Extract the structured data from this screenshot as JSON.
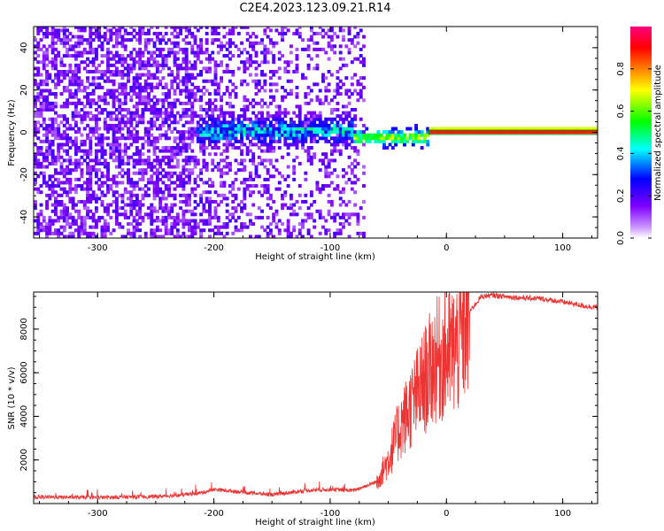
{
  "title": "C2E4.2023.123.09.21.R14",
  "chart_data": [
    {
      "type": "heatmap",
      "title": "C2E4.2023.123.09.21.R14",
      "xlabel": "Height of straight line (km)",
      "ylabel": "Frequency (Hz)",
      "xlim": [
        -355,
        130
      ],
      "ylim": [
        -50,
        50
      ],
      "xticks": [
        -300,
        -200,
        -100,
        0,
        100
      ],
      "yticks": [
        -40,
        -20,
        0,
        20,
        40
      ],
      "xtick_labels": [
        "-300",
        "-200",
        "-100",
        "0",
        "100"
      ],
      "ytick_labels": [
        "-40",
        "-20",
        "0",
        "20",
        "40"
      ],
      "colorbar": {
        "label": "Normalized spectral amplitude",
        "range": [
          0,
          1
        ],
        "ticks": [
          0.0,
          0.2,
          0.4,
          0.6,
          0.8
        ],
        "tick_labels": [
          "0.0",
          "0.2",
          "0.4",
          "0.6",
          "0.8"
        ],
        "colors": [
          "#ffffff",
          "#cc99ff",
          "#7f00ff",
          "#0000ff",
          "#00ffff",
          "#00ff00",
          "#ffff00",
          "#ff8000",
          "#ff0000",
          "#ff0080"
        ]
      },
      "description_regions": [
        {
          "x_range": [
            -355,
            -70
          ],
          "freq_range": [
            -50,
            50
          ],
          "amplitude": 0.1
        },
        {
          "x_range": [
            -215,
            -80
          ],
          "freq_range": [
            -8,
            8
          ],
          "amplitude": 0.35
        },
        {
          "x_range": [
            -70,
            -15
          ],
          "freq_range": [
            -6,
            2
          ],
          "amplitude": 0.55
        },
        {
          "x_range": [
            -15,
            130
          ],
          "freq_range": [
            -1,
            1
          ],
          "amplitude": 0.95
        }
      ]
    },
    {
      "type": "line",
      "xlabel": "Height of straight line (km)",
      "ylabel": "SNR (10 * v/v)",
      "xlim": [
        -355,
        130
      ],
      "ylim": [
        0,
        9700
      ],
      "xticks": [
        -300,
        -200,
        -100,
        0,
        100
      ],
      "yticks": [
        2000,
        4000,
        6000,
        8000
      ],
      "xtick_labels": [
        "-300",
        "-200",
        "-100",
        "0",
        "100"
      ],
      "ytick_labels": [
        "2000",
        "4000",
        "6000",
        "8000"
      ],
      "series": [
        {
          "name": "SNR",
          "color": "#ee3333",
          "x": [
            -355,
            -300,
            -250,
            -230,
            -210,
            -200,
            -180,
            -150,
            -120,
            -100,
            -80,
            -60,
            -50,
            -40,
            -30,
            -20,
            -10,
            0,
            10,
            20,
            30,
            40,
            60,
            80,
            100,
            120,
            130
          ],
          "y": [
            300,
            280,
            320,
            380,
            500,
            650,
            550,
            400,
            600,
            650,
            600,
            1000,
            2000,
            3500,
            4500,
            5500,
            6500,
            6800,
            7200,
            8800,
            9500,
            9550,
            9450,
            9400,
            9250,
            9050,
            9000
          ]
        }
      ]
    }
  ]
}
